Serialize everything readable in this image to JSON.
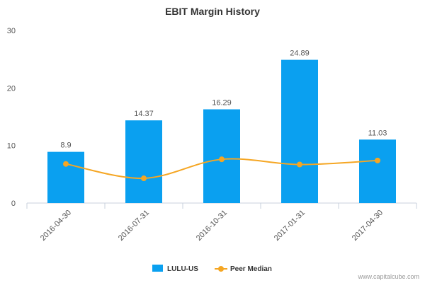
{
  "chart_data": {
    "type": "bar",
    "title": "EBIT Margin History",
    "categories": [
      "2016-04-30",
      "2016-07-31",
      "2016-10-31",
      "2017-01-31",
      "2017-04-30"
    ],
    "series": [
      {
        "name": "LULU-US",
        "type": "bar",
        "values": [
          8.9,
          14.37,
          16.29,
          24.89,
          11.03
        ],
        "color": "#0aa0f0",
        "data_labels": [
          "8.9",
          "14.37",
          "16.29",
          "24.89",
          "11.03"
        ]
      },
      {
        "name": "Peer Median",
        "type": "line",
        "values": [
          6.8,
          4.3,
          7.6,
          6.7,
          7.4
        ],
        "color": "#f5a623"
      }
    ],
    "ylim": [
      0,
      30
    ],
    "yticks": [
      "0",
      "10",
      "20",
      "30"
    ],
    "xlabel": "",
    "ylabel": "",
    "grid": false,
    "legend": "bottom-center"
  },
  "credit": "www.capitalcube.com"
}
